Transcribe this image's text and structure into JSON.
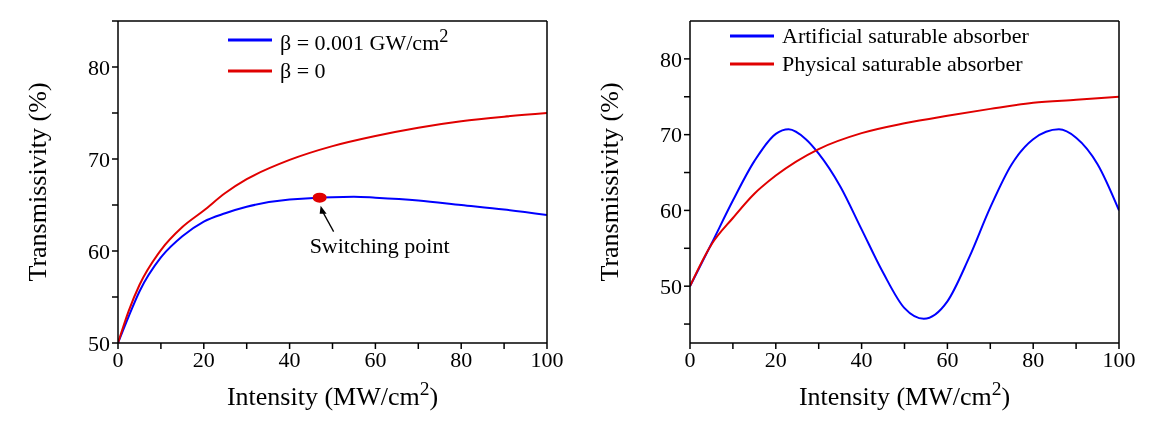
{
  "chart_data": [
    {
      "type": "line",
      "xlabel": "Intensity (MW/cm$^{2}$)",
      "ylabel": "Transmissivity (%)",
      "xlim": [
        0,
        100
      ],
      "ylim": [
        50,
        85
      ],
      "xticks": [
        0,
        {
          "value": 10,
          "label": null
        },
        20,
        {
          "value": 30,
          "label": null
        },
        40,
        {
          "value": 50,
          "label": null
        },
        60,
        {
          "value": 70,
          "label": null
        },
        80,
        {
          "value": 90,
          "label": null
        },
        100
      ],
      "yticks": [
        50,
        {
          "value": 55,
          "label": null
        },
        60,
        {
          "value": 65,
          "label": null
        },
        70,
        {
          "value": 75,
          "label": null
        },
        80,
        {
          "value": 85,
          "label": null
        }
      ],
      "legend": "top",
      "grid": false,
      "marker": "none",
      "line_style": "solid",
      "annotations": [
        {
          "text": "Switching point",
          "x": 47,
          "y": 65.8
        }
      ],
      "series": [
        {
          "name": "β = 0.001 GW/cm$^{2}$",
          "color": "#0000ff",
          "x": [
            0,
            2.5,
            5,
            10,
            15,
            20,
            25,
            30,
            40,
            55,
            60,
            70,
            80,
            90,
            100
          ],
          "values": [
            50,
            52.9,
            55.6,
            59.3,
            61.6,
            63.2,
            64.1,
            64.8,
            65.6,
            65.9,
            65.8,
            65.5,
            65.0,
            64.5,
            63.9
          ]
        },
        {
          "name": "β = 0",
          "color": "#e00000",
          "x": [
            0,
            2.5,
            5,
            10,
            15,
            20,
            25,
            30,
            40,
            50,
            60,
            70,
            80,
            90,
            100
          ],
          "values": [
            50,
            53.5,
            56.3,
            60.1,
            62.6,
            64.4,
            66.3,
            67.8,
            69.9,
            71.4,
            72.5,
            73.4,
            74.1,
            74.6,
            75.0
          ]
        },
        {
          "type": "scatter",
          "color": "#e00000",
          "x": [
            47
          ],
          "values": [
            65.8
          ],
          "marker": "circle"
        }
      ]
    },
    {
      "type": "line",
      "xlabel": "Intensity (MW/cm$^{2}$)",
      "ylabel": "Transmissivity (%)",
      "xlim": [
        0,
        100
      ],
      "ylim": [
        42.5,
        85
      ],
      "xticks": [
        0,
        {
          "value": 10,
          "label": null
        },
        20,
        {
          "value": 30,
          "label": null
        },
        40,
        {
          "value": 50,
          "label": null
        },
        60,
        {
          "value": 70,
          "label": null
        },
        80,
        {
          "value": 90,
          "label": null
        },
        100
      ],
      "yticks": [
        {
          "value": 45,
          "label": null
        },
        50,
        {
          "value": 55,
          "label": null
        },
        60,
        {
          "value": 65,
          "label": null
        },
        70,
        {
          "value": 75,
          "label": null
        },
        80
      ],
      "legend": "top",
      "grid": false,
      "marker": "none",
      "line_style": "solid",
      "series": [
        {
          "name": "Artificial saturable absorber",
          "color": "#0000ff",
          "x": [
            0,
            5,
            10,
            15,
            20,
            23,
            27,
            30,
            35,
            40,
            45,
            50,
            54.5,
            60,
            65,
            70,
            75,
            80,
            86,
            90,
            95,
            100
          ],
          "values": [
            50,
            55.6,
            61.3,
            66.5,
            70.1,
            70.7,
            69.4,
            67.5,
            63.2,
            57.5,
            51.8,
            47.1,
            45.7,
            48.0,
            53.7,
            60.4,
            66.1,
            69.4,
            70.7,
            69.6,
            66.1,
            60.0
          ]
        },
        {
          "name": "Physical saturable absorber",
          "color": "#e00000",
          "x": [
            0,
            5,
            10,
            15,
            20,
            30,
            40,
            50,
            60,
            70,
            80,
            90,
            100
          ],
          "values": [
            50,
            55.5,
            59.0,
            62.2,
            64.6,
            68.1,
            70.2,
            71.5,
            72.5,
            73.4,
            74.2,
            74.6,
            75.0
          ]
        }
      ]
    }
  ]
}
